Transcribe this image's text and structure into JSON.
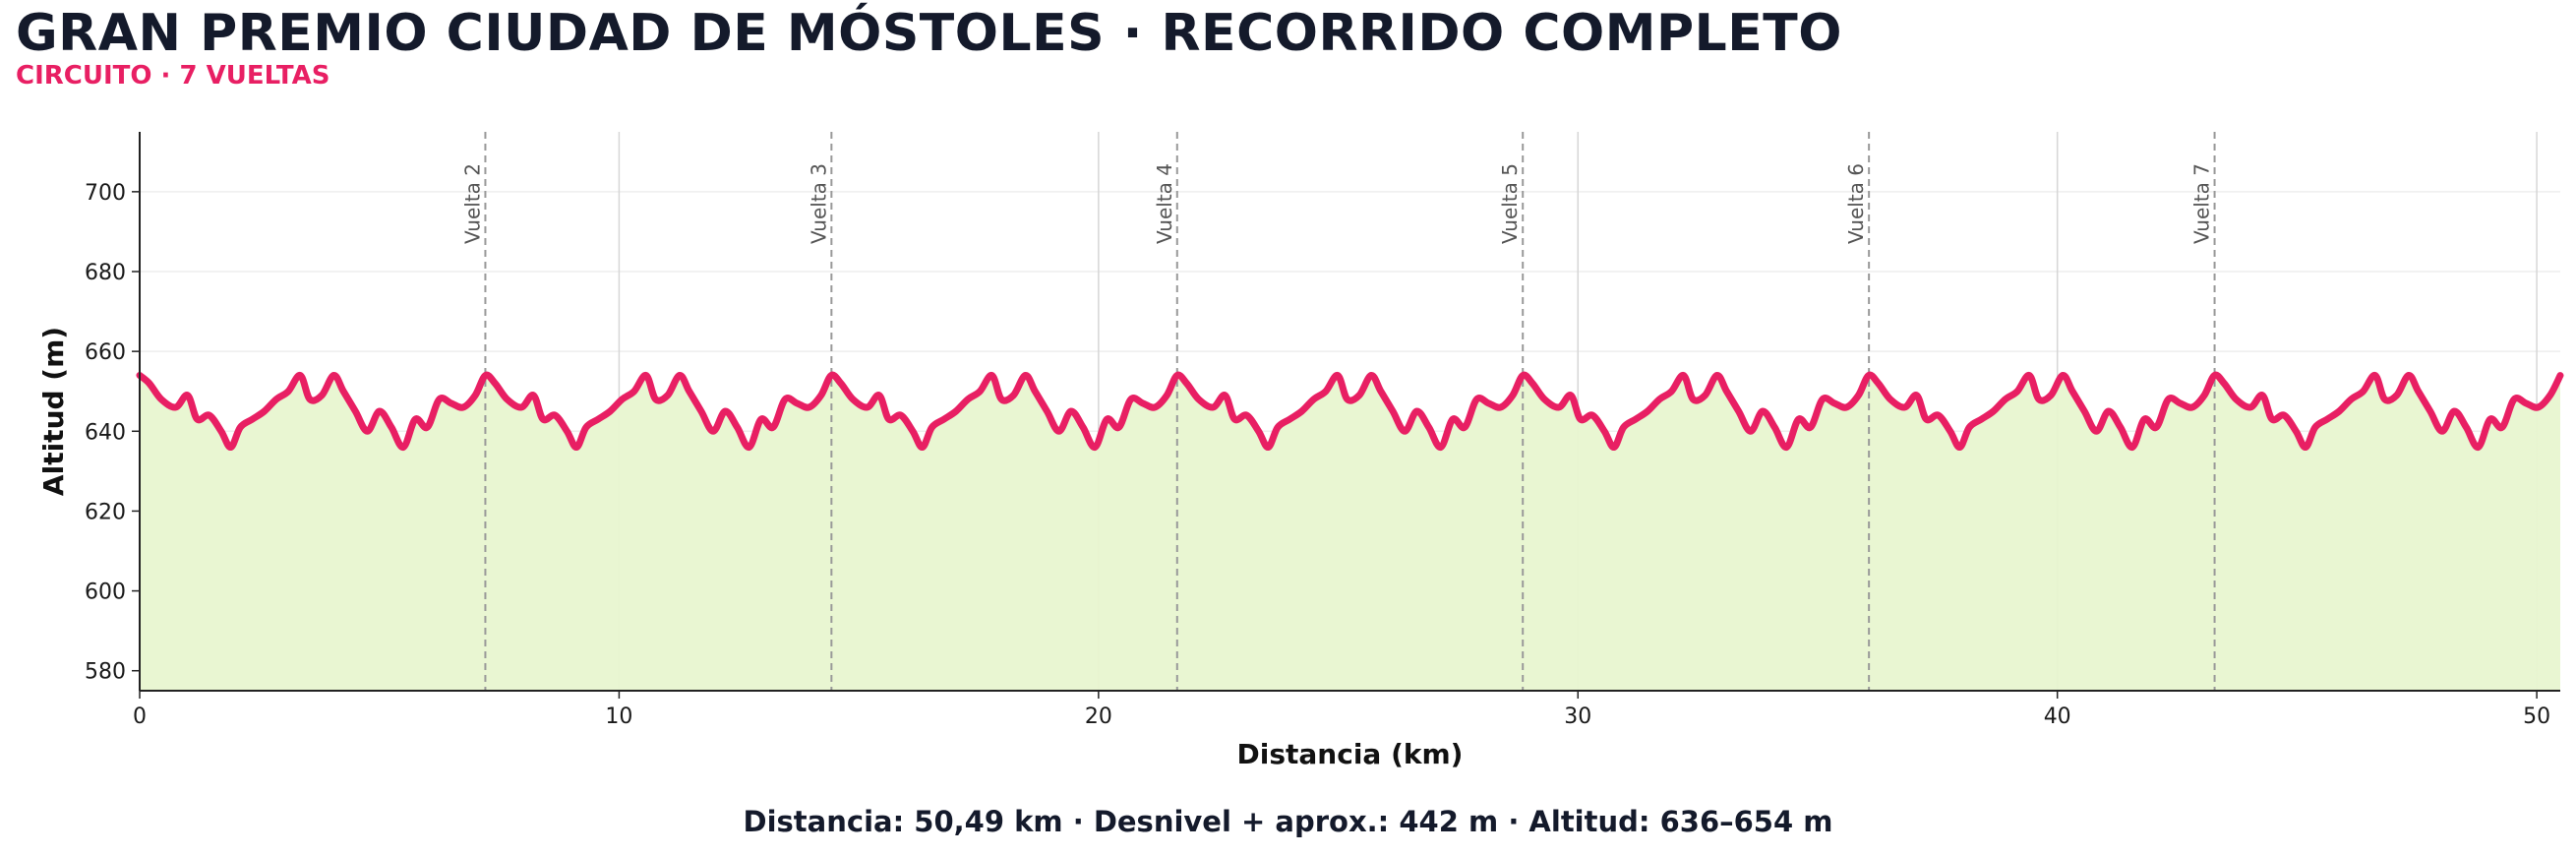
{
  "header": {
    "title": "GRAN PREMIO CIUDAD DE MÓSTOLES · RECORRIDO COMPLETO",
    "subtitle": "CIRCUITO · 7 VUELTAS"
  },
  "footer": {
    "stats": "Distancia: 50,49 km · Desnivel + aprox.: 442 m · Altitud: 636–654 m"
  },
  "colors": {
    "line": "#e81f63",
    "fill": "#e8f5d0",
    "title": "#141a2b",
    "subtitle": "#e81f63"
  },
  "chart_data": {
    "type": "area",
    "xlabel": "Distancia (km)",
    "ylabel": "Altitud (m)",
    "xlim": [
      0,
      50.49
    ],
    "ylim": [
      575,
      715
    ],
    "x_ticks": [
      0,
      10,
      20,
      30,
      40,
      50
    ],
    "y_ticks": [
      580,
      600,
      620,
      640,
      660,
      680,
      700
    ],
    "grid": true,
    "lap_length_km": 7.213,
    "laps": [
      {
        "label": "Vuelta 2",
        "x": 7.21
      },
      {
        "label": "Vuelta 3",
        "x": 14.43
      },
      {
        "label": "Vuelta 4",
        "x": 21.64
      },
      {
        "label": "Vuelta 5",
        "x": 28.85
      },
      {
        "label": "Vuelta 6",
        "x": 36.07
      },
      {
        "label": "Vuelta 7",
        "x": 43.28
      }
    ],
    "series": [
      {
        "x": [
          0.0,
          0.2,
          0.45,
          0.75,
          1.0,
          1.2,
          1.45,
          1.7,
          1.9,
          2.1,
          2.35,
          2.6,
          2.85,
          3.1,
          3.35,
          3.55,
          3.8,
          4.05,
          4.25,
          4.5,
          4.75,
          5.0,
          5.25,
          5.5,
          5.75,
          6.0,
          6.25,
          6.5,
          6.75,
          7.0,
          7.213
        ],
        "y": [
          654,
          652,
          648,
          646,
          649,
          643,
          644,
          640,
          636,
          641,
          643,
          645,
          648,
          650,
          654,
          648,
          649,
          654,
          650,
          645,
          640,
          645,
          641,
          636,
          643,
          641,
          648,
          647,
          646,
          649,
          654
        ]
      }
    ],
    "summary": {
      "distance": "50,49 km",
      "elevation_gain": "442 m",
      "altitude_range": "636–654 m"
    }
  }
}
